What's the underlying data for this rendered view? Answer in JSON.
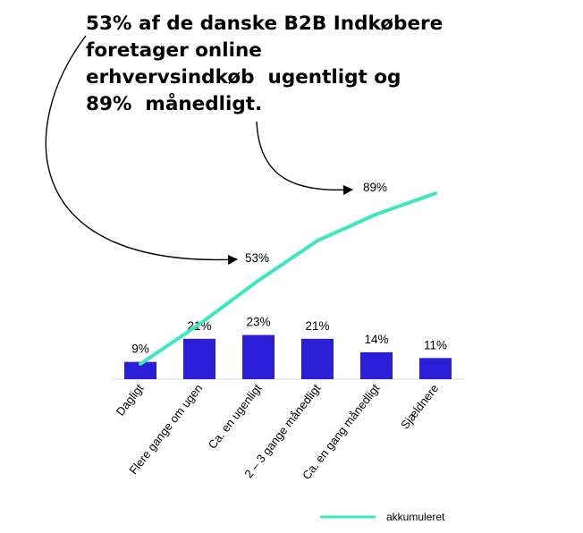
{
  "headline": {
    "lines": [
      "53% af de danske B2B Indkøbere",
      "foretager online",
      "erhvervsindkøb  ugentligt og",
      "89%  månedligt."
    ]
  },
  "chart_data": {
    "type": "bar",
    "categories": [
      "Dagligt",
      "Flere gange om ugen",
      "Ca. en ugenligt",
      "2 – 3 gange månedligt",
      "Ca. en gang månedligt",
      "Sjældnere"
    ],
    "values": [
      9,
      21,
      23,
      21,
      14,
      11
    ],
    "value_labels": [
      "9%",
      "21%",
      "23%",
      "21%",
      "14%",
      "11%"
    ],
    "bar_color": "#2a1fd6",
    "series": [
      {
        "name": "akkumuleret",
        "type": "line",
        "color": "#3fe6c0",
        "values": [
          9,
          30,
          53,
          74,
          88,
          99
        ]
      }
    ],
    "annotations": [
      "53%",
      "89%"
    ],
    "legend": {
      "position": "bottom-right",
      "label": "akkumuleret"
    },
    "grid": false
  }
}
